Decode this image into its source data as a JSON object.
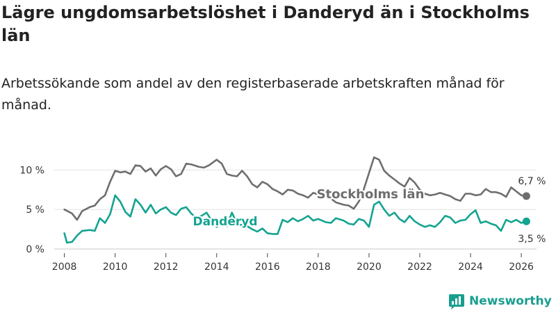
{
  "title": "Lägre ungdomsarbetslöshet i Danderyd än i Stockholms län",
  "subtitle": "Arbetssökande som andel av den registerbaserade arbetskraften månad för månad.",
  "brand": {
    "name": "Newsworthy",
    "icon": "bar-chart-icon",
    "color": "#1a9e8f"
  },
  "chart_data": {
    "type": "line",
    "ylim": [
      0,
      12.5
    ],
    "xlim": [
      2007.6,
      2026.6
    ],
    "yticks": [
      {
        "v": 0,
        "label": "0 %"
      },
      {
        "v": 5,
        "label": "5 %"
      },
      {
        "v": 10,
        "label": "10 %"
      }
    ],
    "xticks": [
      "2008",
      "2010",
      "2012",
      "2014",
      "2016",
      "2018",
      "2020",
      "2022",
      "2024",
      "2026"
    ],
    "grid": true,
    "series": [
      {
        "name": "Stockholms län",
        "color": "#6e6e6e",
        "end_label": "6,7 %",
        "x": [
          2008.0,
          2008.3,
          2008.5,
          2008.7,
          2009.0,
          2009.2,
          2009.4,
          2009.6,
          2009.8,
          2010.0,
          2010.2,
          2010.4,
          2010.6,
          2010.8,
          2011.0,
          2011.2,
          2011.4,
          2011.6,
          2011.8,
          2012.0,
          2012.2,
          2012.4,
          2012.6,
          2012.8,
          2013.0,
          2013.3,
          2013.5,
          2013.7,
          2014.0,
          2014.2,
          2014.4,
          2014.6,
          2014.8,
          2015.0,
          2015.2,
          2015.4,
          2015.6,
          2015.8,
          2016.0,
          2016.2,
          2016.4,
          2016.6,
          2016.8,
          2017.0,
          2017.2,
          2017.4,
          2017.6,
          2017.8,
          2018.0,
          2018.3,
          2018.5,
          2018.7,
          2019.0,
          2019.2,
          2019.4,
          2019.6,
          2019.8,
          2020.0,
          2020.2,
          2020.4,
          2020.6,
          2020.8,
          2021.0,
          2021.2,
          2021.4,
          2021.6,
          2021.8,
          2022.0,
          2022.2,
          2022.4,
          2022.6,
          2022.8,
          2023.0,
          2023.2,
          2023.4,
          2023.6,
          2023.8,
          2024.0,
          2024.2,
          2024.4,
          2024.6,
          2024.8,
          2025.0,
          2025.2,
          2025.4,
          2025.6,
          2025.8,
          2026.0,
          2026.2
        ],
        "y": [
          5.0,
          4.5,
          3.7,
          4.8,
          5.3,
          5.5,
          6.3,
          6.8,
          8.5,
          9.9,
          9.7,
          9.8,
          9.5,
          10.6,
          10.5,
          9.8,
          10.2,
          9.3,
          10.1,
          10.5,
          10.1,
          9.2,
          9.5,
          10.8,
          10.7,
          10.4,
          10.3,
          10.6,
          11.3,
          10.8,
          9.5,
          9.3,
          9.2,
          9.9,
          9.2,
          8.2,
          7.8,
          8.5,
          8.2,
          7.6,
          7.3,
          6.9,
          7.5,
          7.4,
          7.0,
          6.8,
          6.5,
          7.1,
          6.9,
          6.6,
          6.4,
          5.9,
          5.6,
          5.5,
          5.1,
          6.0,
          7.6,
          9.6,
          11.6,
          11.3,
          9.9,
          9.3,
          8.8,
          8.3,
          7.9,
          9.0,
          8.4,
          7.5,
          7.0,
          6.8,
          6.9,
          7.1,
          6.9,
          6.7,
          6.3,
          6.1,
          7.0,
          7.0,
          6.8,
          6.9,
          7.6,
          7.2,
          7.2,
          7.0,
          6.6,
          7.8,
          7.3,
          6.8,
          6.7
        ]
      },
      {
        "name": "Danderyd",
        "color": "#13a391",
        "end_label": "3,5 %",
        "x": [
          2008.0,
          2008.1,
          2008.3,
          2008.5,
          2008.7,
          2009.0,
          2009.2,
          2009.4,
          2009.6,
          2009.8,
          2010.0,
          2010.2,
          2010.4,
          2010.6,
          2010.8,
          2011.0,
          2011.2,
          2011.4,
          2011.6,
          2011.8,
          2012.0,
          2012.2,
          2012.4,
          2012.6,
          2012.8,
          2013.0,
          2013.2,
          2013.4,
          2013.6,
          2013.8,
          2014.0,
          2014.2,
          2014.4,
          2014.6,
          2014.8,
          2015.0,
          2015.2,
          2015.4,
          2015.6,
          2015.8,
          2016.0,
          2016.2,
          2016.4,
          2016.6,
          2016.8,
          2017.0,
          2017.2,
          2017.4,
          2017.6,
          2017.8,
          2018.0,
          2018.3,
          2018.5,
          2018.7,
          2019.0,
          2019.2,
          2019.4,
          2019.6,
          2019.8,
          2020.0,
          2020.2,
          2020.4,
          2020.6,
          2020.8,
          2021.0,
          2021.2,
          2021.4,
          2021.6,
          2021.8,
          2022.0,
          2022.2,
          2022.4,
          2022.6,
          2022.8,
          2023.0,
          2023.2,
          2023.4,
          2023.6,
          2023.8,
          2024.0,
          2024.2,
          2024.4,
          2024.6,
          2024.8,
          2025.0,
          2025.2,
          2025.4,
          2025.6,
          2025.8,
          2026.0,
          2026.2
        ],
        "y": [
          2.0,
          0.8,
          0.9,
          1.7,
          2.3,
          2.4,
          2.3,
          3.9,
          3.3,
          4.4,
          6.8,
          6.0,
          4.7,
          4.1,
          6.3,
          5.6,
          4.6,
          5.6,
          4.5,
          5.0,
          5.3,
          4.6,
          4.3,
          5.1,
          5.3,
          4.5,
          3.9,
          4.2,
          4.6,
          3.6,
          2.8,
          3.2,
          2.9,
          4.6,
          3.2,
          3.0,
          2.9,
          2.5,
          2.2,
          2.6,
          2.0,
          1.9,
          1.9,
          3.7,
          3.4,
          3.9,
          3.5,
          3.8,
          4.2,
          3.6,
          3.8,
          3.4,
          3.3,
          3.9,
          3.6,
          3.2,
          3.1,
          3.8,
          3.6,
          2.8,
          5.6,
          6.0,
          5.0,
          4.2,
          4.6,
          3.8,
          3.4,
          4.2,
          3.5,
          3.1,
          2.8,
          3.0,
          2.8,
          3.4,
          4.2,
          4.0,
          3.3,
          3.6,
          3.7,
          4.4,
          4.9,
          3.3,
          3.5,
          3.2,
          3.0,
          2.3,
          3.7,
          3.4,
          3.7,
          3.3,
          3.5
        ]
      }
    ]
  }
}
